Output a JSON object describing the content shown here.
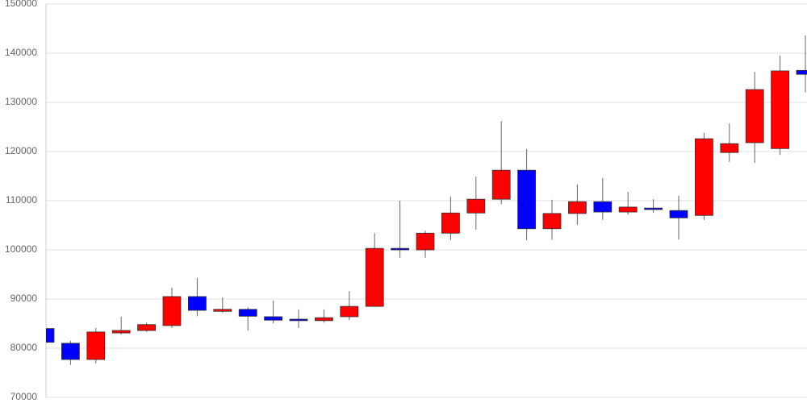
{
  "chart_data": {
    "type": "candlestick",
    "categories": [
      null,
      null,
      null,
      null,
      null,
      null,
      null,
      null,
      null,
      null,
      null,
      null,
      null,
      null,
      null,
      null,
      null,
      null,
      null,
      null,
      null,
      null,
      null,
      null,
      null,
      null,
      null,
      null,
      null,
      null,
      null
    ],
    "open": [
      84000,
      81000,
      77700,
      83100,
      83600,
      84600,
      90500,
      87500,
      87900,
      86400,
      85900,
      85600,
      86400,
      88500,
      100300,
      100000,
      103400,
      107500,
      110300,
      116200,
      104300,
      107400,
      109800,
      107700,
      108500,
      108000,
      107000,
      119800,
      121800,
      120600,
      136500
    ],
    "high": [
      84200,
      81500,
      84100,
      86400,
      85200,
      92300,
      94300,
      90300,
      88300,
      89700,
      87900,
      87900,
      91600,
      103400,
      110000,
      103900,
      110800,
      114900,
      126200,
      120500,
      110200,
      113300,
      114600,
      111800,
      110300,
      111000,
      123800,
      125700,
      136200,
      139500,
      143600
    ],
    "low": [
      81000,
      76600,
      76900,
      82800,
      83300,
      84100,
      86500,
      87200,
      83600,
      85100,
      84100,
      85200,
      85700,
      88400,
      98400,
      98400,
      102000,
      104100,
      109300,
      102000,
      102100,
      105100,
      106100,
      107200,
      107500,
      102100,
      106100,
      117900,
      117700,
      119300,
      132000
    ],
    "close": [
      81200,
      77700,
      83300,
      83600,
      84800,
      90500,
      87700,
      87900,
      86500,
      85700,
      85600,
      86200,
      88500,
      100300,
      100000,
      103400,
      107500,
      110300,
      116200,
      104300,
      107400,
      109800,
      107700,
      108700,
      108200,
      106500,
      122600,
      121600,
      132600,
      136400,
      135700
    ],
    "up_color": "#ff0000",
    "down_color": "#0000ff",
    "wick_color": "#666666",
    "ylim": [
      70000,
      150000
    ],
    "yticks": [
      70000,
      80000,
      90000,
      100000,
      110000,
      120000,
      130000,
      140000,
      150000
    ],
    "grid": true
  }
}
